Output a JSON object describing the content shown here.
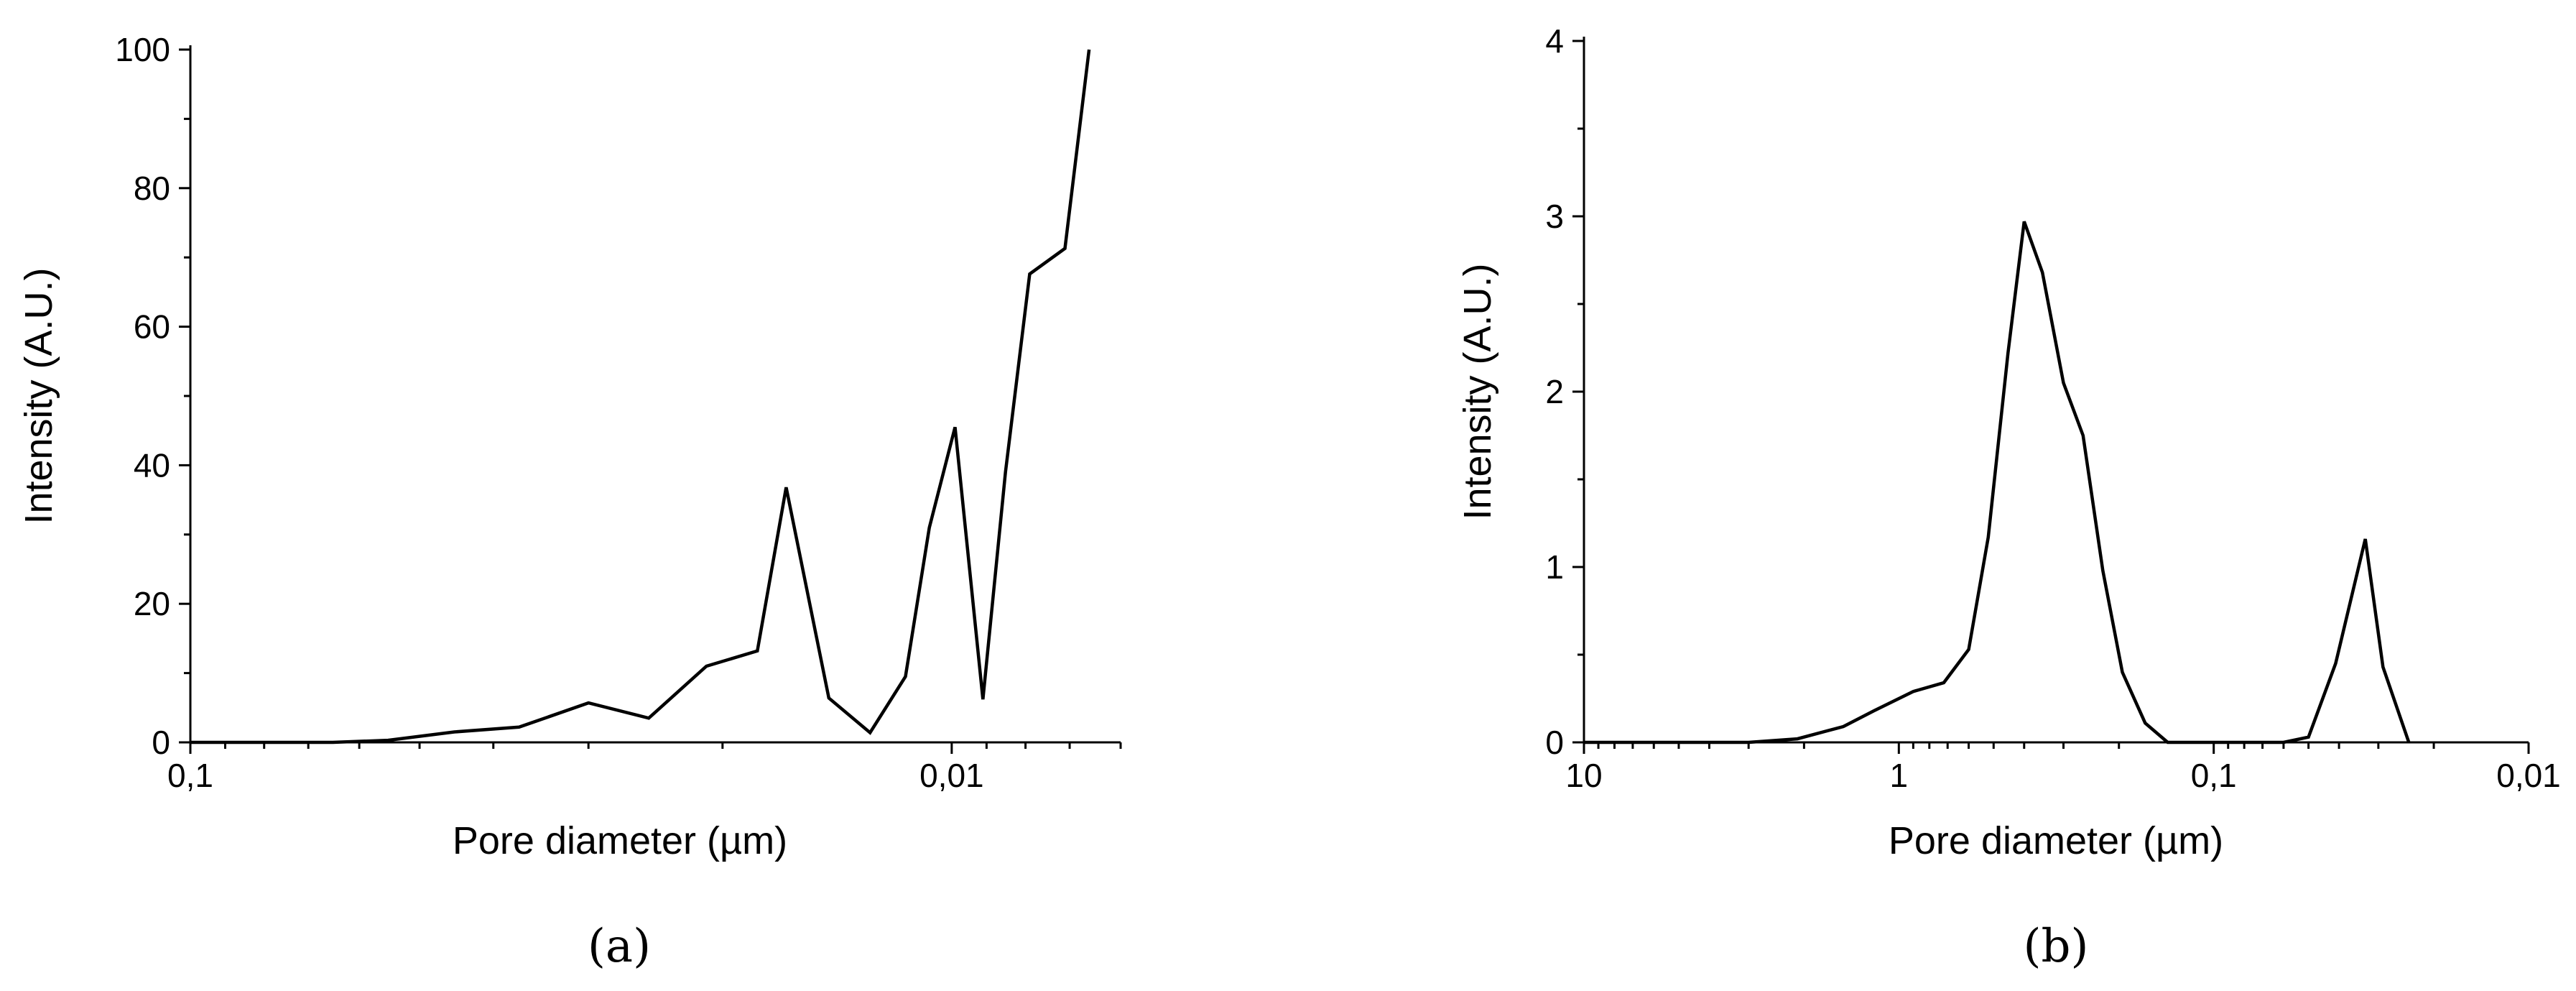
{
  "chart_data": [
    {
      "type": "line",
      "panel_label": "(a)",
      "xlabel": "Pore diameter (µm)",
      "ylabel": "Intensity (A.U.)",
      "x_scale": "log",
      "x_reversed": true,
      "xlim": [
        0.1,
        0.006
      ],
      "ylim": [
        0,
        100
      ],
      "x_ticks": [
        {
          "value": 0.1,
          "label": "0,1"
        },
        {
          "value": 0.01,
          "label": "0,01"
        }
      ],
      "y_ticks": [
        0,
        20,
        40,
        60,
        80,
        100
      ],
      "series": [
        {
          "x": [
            0.1,
            0.08,
            0.065,
            0.055,
            0.045,
            0.037,
            0.03,
            0.025,
            0.021,
            0.018,
            0.0165,
            0.0145,
            0.0128,
            0.0115,
            0.0107,
            0.0099,
            0.0091,
            0.0085,
            0.0079,
            0.0071,
            0.0066
          ],
          "y": [
            0,
            0,
            0,
            0.3,
            1.5,
            2.2,
            5.7,
            3.5,
            11,
            13.2,
            36.8,
            6.4,
            1.4,
            9.5,
            31,
            45.5,
            6.2,
            39,
            67.6,
            71.3,
            100
          ]
        }
      ]
    },
    {
      "type": "line",
      "panel_label": "(b)",
      "xlabel": "Pore diameter (µm)",
      "ylabel": "Intensity (A.U.)",
      "x_scale": "log",
      "x_reversed": true,
      "xlim": [
        10,
        0.01
      ],
      "ylim": [
        0,
        4
      ],
      "x_ticks": [
        {
          "value": 10,
          "label": "10"
        },
        {
          "value": 1,
          "label": "1"
        },
        {
          "value": 0.1,
          "label": "0,1"
        },
        {
          "value": 0.01,
          "label": "0,01"
        }
      ],
      "y_ticks": [
        0,
        1,
        2,
        3,
        4
      ],
      "series": [
        {
          "x": [
            10,
            5,
            3,
            2.1,
            1.5,
            1.2,
            0.9,
            0.72,
            0.6,
            0.52,
            0.45,
            0.4,
            0.35,
            0.3,
            0.26,
            0.225,
            0.195,
            0.165,
            0.14,
            0.115,
            0.095,
            0.06,
            0.05,
            0.041,
            0.033,
            0.029,
            0.024
          ],
          "y": [
            0,
            0,
            0,
            0.02,
            0.09,
            0.18,
            0.29,
            0.34,
            0.53,
            1.17,
            2.22,
            2.97,
            2.68,
            2.05,
            1.75,
            0.98,
            0.4,
            0.11,
            0,
            0,
            0,
            0,
            0.03,
            0.45,
            1.16,
            0.43,
            0
          ]
        }
      ]
    }
  ]
}
